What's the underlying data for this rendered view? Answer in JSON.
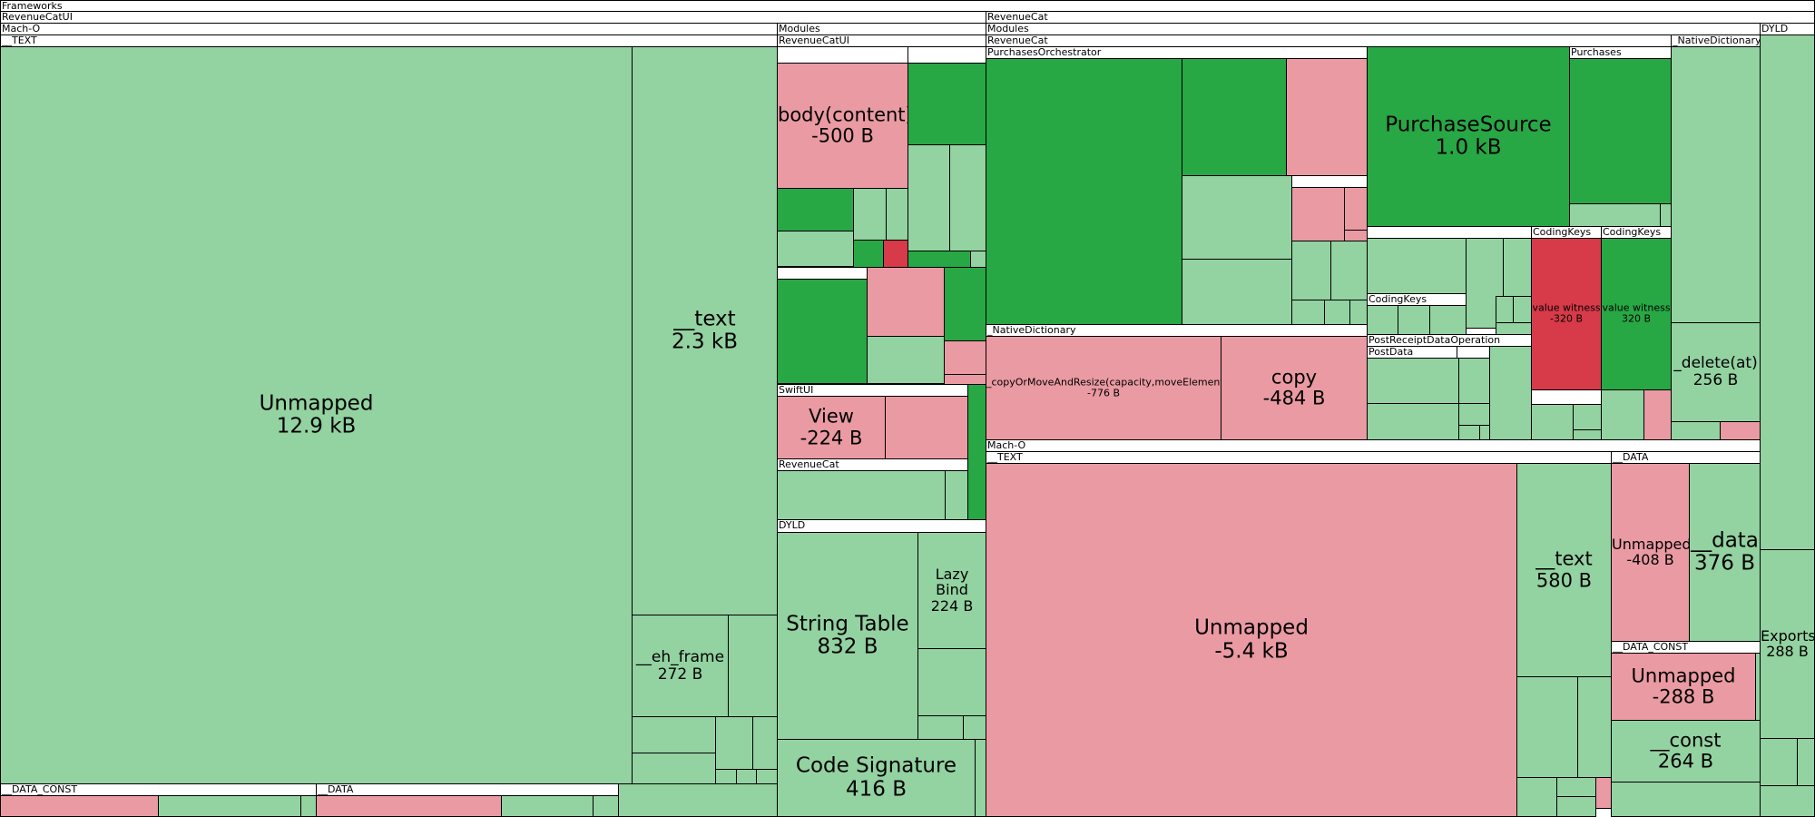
{
  "headers": {
    "frameworks": "Frameworks",
    "revenuecatui": "RevenueCatUI",
    "revenuecat": "RevenueCat",
    "macho": "Mach-O",
    "modules": "Modules",
    "modules2": "Modules",
    "dyld": "DYLD",
    "text": "__TEXT",
    "revenuecatui_module": "RevenueCatUI",
    "revenuecat_module": "RevenueCat",
    "purchases_orchestrator": "PurchasesOrchestrator",
    "purchases": "Purchases",
    "native_dictionary_right": "_NativeDictionary",
    "native_dictionary": "_NativeDictionary",
    "swiftui": "SwiftUI",
    "revenuecat_sub": "RevenueCat",
    "dyld_sub": "DYLD",
    "coding_keys_1": "CodingKeys",
    "coding_keys_2": "CodingKeys",
    "coding_keys_3": "CodingKeys",
    "post_receipt": "PostReceiptDataOperation",
    "post_data": "PostData",
    "macho_rc": "Mach-O",
    "text_rc": "__TEXT",
    "data_rc": "__DATA",
    "data_const_rc": "__DATA_CONST",
    "data_const": "__DATA_CONST",
    "data": "__DATA"
  },
  "cells": {
    "unmapped_ui": {
      "name": "Unmapped",
      "size": "12.9 kB"
    },
    "text_ui": {
      "name": "__text",
      "size": "2.3 kB"
    },
    "eh_frame": {
      "name": "__eh_frame",
      "size": "272 B"
    },
    "body_content": {
      "name": "body(content)",
      "size": "-500 B"
    },
    "view": {
      "name": "View",
      "size": "-224 B"
    },
    "string_table": {
      "name": "String Table",
      "size": "832 B"
    },
    "lazy_bind": {
      "name": "Lazy Bind",
      "size": "224 B"
    },
    "code_signature": {
      "name": "Code Signature",
      "size": "416 B"
    },
    "purchase_source": {
      "name": "PurchaseSource",
      "size": "1.0 kB"
    },
    "copy_or_move": {
      "name": "_copyOrMoveAndResize(capacity,moveElements)",
      "size": "-776 B"
    },
    "copy": {
      "name": "copy",
      "size": "-484 B"
    },
    "value_witness_neg": {
      "name": "value witness",
      "size": "-320 B"
    },
    "value_witness_pos": {
      "name": "value witness",
      "size": "320 B"
    },
    "delete_at": {
      "name": "_delete(at)",
      "size": "256 B"
    },
    "unmapped_rc": {
      "name": "Unmapped",
      "size": "-5.4 kB"
    },
    "text_rc": {
      "name": "__text",
      "size": "580 B"
    },
    "unmapped_data": {
      "name": "Unmapped",
      "size": "-408 B"
    },
    "data_rc": {
      "name": "__data",
      "size": "376 B"
    },
    "unmapped_const": {
      "name": "Unmapped",
      "size": "-288 B"
    },
    "const_rc": {
      "name": "__const",
      "size": "264 B"
    },
    "exports": {
      "name": "Exports",
      "size": "288 B"
    }
  },
  "colors": {
    "increase_light": "#93d2a1",
    "increase_strong": "#28a745",
    "decrease_light": "#ea9aa3",
    "decrease_strong": "#d73a49"
  }
}
